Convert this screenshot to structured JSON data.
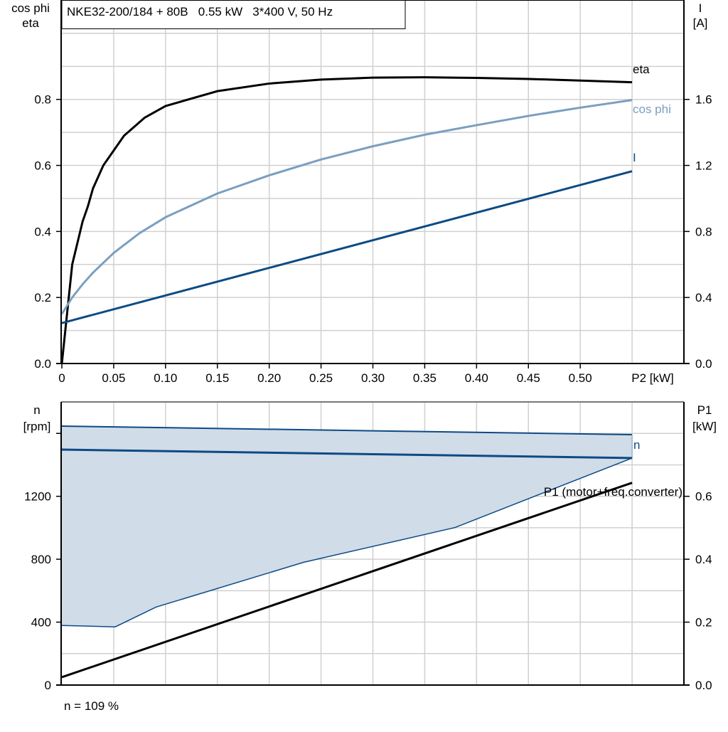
{
  "chart_data": [
    {
      "type": "line",
      "title": "NKE32-200/184 + 80B   0.55 kW   3*400 V, 50 Hz",
      "xlabel": "P2 [kW]",
      "ylabel_left": [
        "cos phi",
        "eta"
      ],
      "ylabel_right": [
        "I",
        "[A]"
      ],
      "xlim": [
        0,
        0.6
      ],
      "ylim_left": [
        0,
        1.1
      ],
      "ylim_right": [
        0,
        2.2
      ],
      "x_ticks": [
        "0",
        "0.05",
        "0.10",
        "0.15",
        "0.20",
        "0.25",
        "0.30",
        "0.35",
        "0.40",
        "0.45",
        "0.50"
      ],
      "y_ticks_left": [
        "0.0",
        "0.2",
        "0.4",
        "0.6",
        "0.8"
      ],
      "y_ticks_right": [
        "0.0",
        "0.4",
        "0.8",
        "1.2",
        "1.6"
      ],
      "grid": true,
      "series": [
        {
          "name": "eta",
          "axis": "left",
          "color": "#000000",
          "x": [
            0,
            0.01,
            0.02,
            0.025,
            0.03,
            0.04,
            0.05,
            0.06,
            0.08,
            0.1,
            0.15,
            0.2,
            0.25,
            0.3,
            0.35,
            0.4,
            0.45,
            0.5,
            0.55
          ],
          "y": [
            0,
            0.3,
            0.43,
            0.475,
            0.53,
            0.6,
            0.645,
            0.69,
            0.745,
            0.78,
            0.825,
            0.848,
            0.86,
            0.866,
            0.867,
            0.865,
            0.862,
            0.857,
            0.852
          ]
        },
        {
          "name": "cos phi",
          "axis": "left",
          "color": "#7a9fc0",
          "x": [
            0,
            0.01,
            0.02,
            0.03,
            0.05,
            0.075,
            0.1,
            0.15,
            0.2,
            0.25,
            0.3,
            0.35,
            0.4,
            0.45,
            0.5,
            0.55
          ],
          "y": [
            0.15,
            0.2,
            0.24,
            0.275,
            0.335,
            0.395,
            0.443,
            0.515,
            0.57,
            0.618,
            0.658,
            0.693,
            0.722,
            0.75,
            0.775,
            0.798
          ]
        },
        {
          "name": "I",
          "axis": "right",
          "color": "#0d4a85",
          "x": [
            0,
            0.55
          ],
          "y": [
            0.245,
            1.165
          ]
        }
      ]
    },
    {
      "type": "area",
      "ylabel_left": [
        "n",
        "[rpm]"
      ],
      "ylabel_right": [
        "P1",
        "[kW]"
      ],
      "xlim": [
        0,
        0.6
      ],
      "ylim_left": [
        0,
        1800
      ],
      "ylim_right": [
        0,
        0.9
      ],
      "y_ticks_left": [
        "0",
        "400",
        "800",
        "1200"
      ],
      "y_ticks_right": [
        "0.0",
        "0.2",
        "0.4",
        "0.6"
      ],
      "grid": true,
      "range_band": {
        "color": "#d0dce8",
        "edge_color": "#0d4a85",
        "upper": {
          "x": [
            0,
            0.55
          ],
          "y": [
            1646,
            1592
          ]
        },
        "lower": {
          "x": [
            0,
            0.0515,
            0.091,
            0.233,
            0.379,
            0.55
          ],
          "y": [
            379,
            370,
            496,
            780,
            1001,
            1443
          ]
        }
      },
      "series": [
        {
          "name": "n",
          "axis": "left",
          "color": "#0d4a85",
          "x": [
            0,
            0.55
          ],
          "y": [
            1497,
            1443
          ]
        },
        {
          "name": "P1 (motor+freq.converter)",
          "axis": "right",
          "color": "#000000",
          "x": [
            0,
            0.55
          ],
          "y": [
            0.025,
            0.643
          ]
        }
      ],
      "footnote": "n = 109 %"
    }
  ]
}
